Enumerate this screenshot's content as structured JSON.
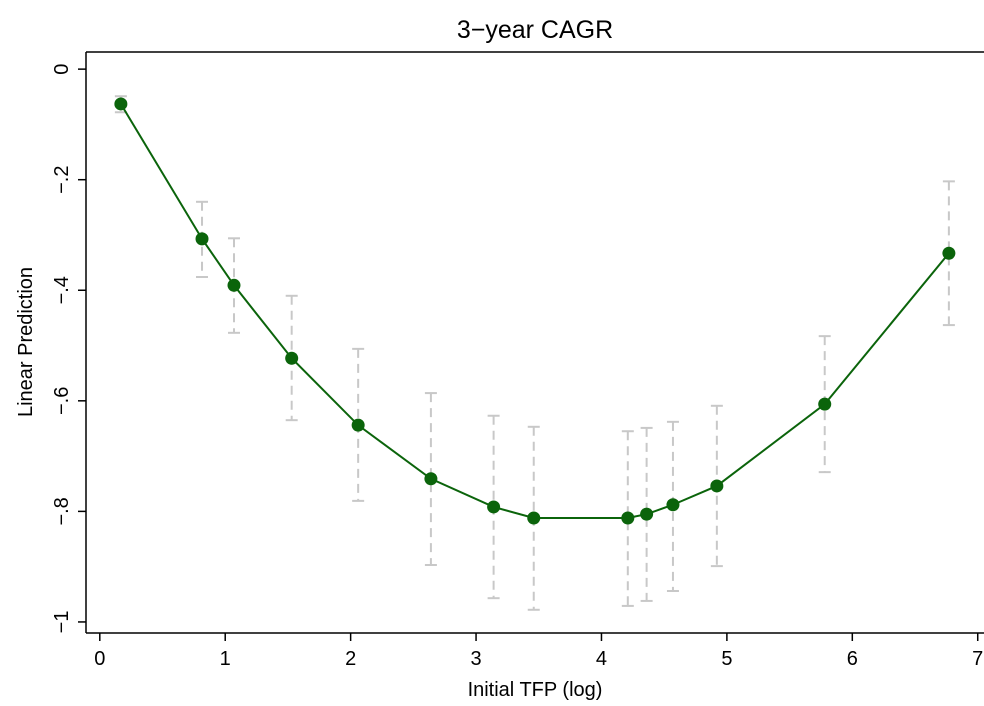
{
  "chart_data": {
    "type": "line",
    "title": "3−year CAGR",
    "x_label": "Initial TFP (log)",
    "y_label": "Linear Prediction",
    "x": [
      0.168,
      0.815,
      1.07,
      1.53,
      2.06,
      2.64,
      3.14,
      3.46,
      4.21,
      4.36,
      4.57,
      4.92,
      5.78,
      6.77
    ],
    "series": [
      {
        "color": "#0b640b",
        "ci_color": "#c8c8c8",
        "values": [
          -0.063,
          -0.307,
          -0.391,
          -0.523,
          -0.644,
          -0.741,
          -0.792,
          -0.812,
          -0.812,
          -0.805,
          -0.788,
          -0.754,
          -0.606,
          -0.333
        ],
        "upper": [
          -0.049,
          -0.24,
          -0.306,
          -0.41,
          -0.506,
          -0.586,
          -0.627,
          -0.647,
          -0.655,
          -0.649,
          -0.638,
          -0.609,
          -0.483,
          -0.203
        ],
        "lower": [
          -0.078,
          -0.376,
          -0.477,
          -0.635,
          -0.781,
          -0.897,
          -0.957,
          -0.978,
          -0.971,
          -0.962,
          -0.944,
          -0.899,
          -0.729,
          -0.463
        ]
      }
    ],
    "xlim": [
      -0.11,
      7.05
    ],
    "ylim": [
      -1.02,
      0.031
    ],
    "xticks": [
      0,
      1,
      2,
      3,
      4,
      5,
      6,
      7
    ],
    "yticks": [
      0,
      {
        "value": -0.2,
        "label": "−.2"
      },
      {
        "value": -0.4,
        "label": "−.4"
      },
      {
        "value": -0.6,
        "label": "−.6"
      },
      {
        "value": -0.8,
        "label": "−.8"
      },
      {
        "value": -1,
        "label": "−1"
      }
    ]
  }
}
